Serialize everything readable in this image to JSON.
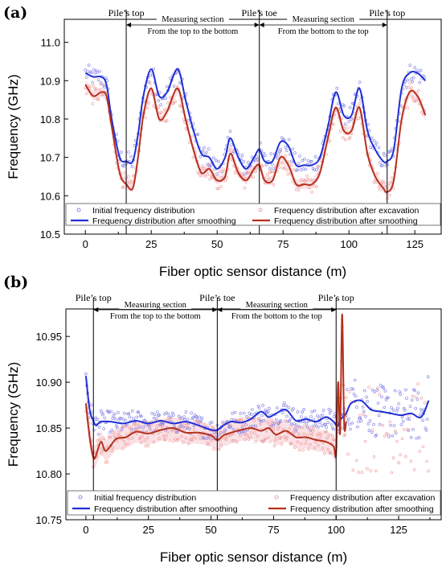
{
  "chart_data": [
    {
      "panel": "(a)",
      "type": "scatter",
      "xlabel": "Fiber optic sensor distance (m)",
      "ylabel": "Frequency (GHz)",
      "xlim": [
        -8,
        135
      ],
      "ylim": [
        10.5,
        11.06
      ],
      "xticks": [
        "0",
        "25",
        "50",
        "75",
        "100",
        "125"
      ],
      "xtick_values": [
        0,
        25,
        50,
        75,
        100,
        125
      ],
      "yticks": [
        "10.5",
        "10.6",
        "10.7",
        "10.8",
        "10.9",
        "11.0"
      ],
      "ytick_values": [
        10.5,
        10.6,
        10.7,
        10.8,
        10.9,
        11.0
      ],
      "markers": [
        {
          "x": 15.5,
          "label": "Pile’s top"
        },
        {
          "x": 66,
          "label": "Pile’s toe"
        },
        {
          "x": 114.5,
          "label": "Pile’s top"
        }
      ],
      "sections": [
        {
          "from": 15.5,
          "to": 66,
          "title": "Measuring section",
          "subtitle": "From the top to the bottom"
        },
        {
          "from": 66,
          "to": 114.5,
          "title": "Measuring section",
          "subtitle": "From the bottom to the top"
        }
      ],
      "legend": [
        {
          "label": "Initial frequency distribution",
          "style": "circle",
          "color": "#6b6bdc"
        },
        {
          "label": "Frequency distribution after excavation",
          "style": "circle",
          "color": "#e88a8a"
        },
        {
          "label": "Frequency distribution after smoothing",
          "style": "line",
          "color": "#1f2fd6"
        },
        {
          "label": "Frequency distribution after smoothing",
          "style": "line",
          "color": "#b5301c"
        }
      ],
      "series": [
        {
          "name": "Frequency distribution after smoothing",
          "color": "#1f2fd6",
          "x": [
            0,
            3,
            6,
            8,
            10,
            13,
            15.5,
            18,
            20,
            22,
            25,
            28,
            31,
            35,
            38,
            41,
            44,
            47,
            50,
            53,
            55,
            58,
            61,
            64,
            66,
            68,
            71,
            74,
            77,
            80,
            83,
            86,
            89,
            92,
            95,
            98,
            101,
            104,
            107,
            110,
            113,
            114.5,
            117,
            120,
            123,
            126,
            129
          ],
          "y": [
            10.92,
            10.91,
            10.91,
            10.89,
            10.8,
            10.7,
            10.69,
            10.69,
            10.76,
            10.86,
            10.93,
            10.86,
            10.87,
            10.93,
            10.85,
            10.77,
            10.71,
            10.7,
            10.67,
            10.7,
            10.75,
            10.7,
            10.67,
            10.7,
            10.72,
            10.69,
            10.69,
            10.74,
            10.73,
            10.68,
            10.68,
            10.68,
            10.7,
            10.78,
            10.87,
            10.81,
            10.81,
            10.88,
            10.77,
            10.72,
            10.69,
            10.69,
            10.72,
            10.88,
            10.92,
            10.92,
            10.9
          ]
        },
        {
          "name": "Frequency distribution after smoothing",
          "color": "#b5301c",
          "x": [
            0,
            3,
            6,
            8,
            10,
            13,
            15.5,
            18,
            20,
            22,
            25,
            28,
            31,
            35,
            38,
            41,
            44,
            47,
            50,
            53,
            55,
            58,
            61,
            64,
            66,
            68,
            71,
            74,
            77,
            80,
            83,
            86,
            89,
            92,
            95,
            98,
            101,
            104,
            107,
            110,
            113,
            114.5,
            117,
            120,
            123,
            126,
            129
          ],
          "y": [
            10.89,
            10.86,
            10.87,
            10.86,
            10.78,
            10.66,
            10.63,
            10.62,
            10.7,
            10.81,
            10.88,
            10.8,
            10.82,
            10.88,
            10.8,
            10.72,
            10.66,
            10.67,
            10.64,
            10.65,
            10.71,
            10.66,
            10.64,
            10.67,
            10.68,
            10.64,
            10.64,
            10.7,
            10.68,
            10.63,
            10.63,
            10.63,
            10.66,
            10.75,
            10.83,
            10.77,
            10.77,
            10.83,
            10.71,
            10.65,
            10.62,
            10.61,
            10.64,
            10.8,
            10.87,
            10.86,
            10.81
          ]
        }
      ]
    },
    {
      "panel": "(b)",
      "type": "scatter",
      "xlabel": "Fiber optic sensor distance (m)",
      "ylabel": "Frequency (GHz)",
      "xlim": [
        -8,
        142
      ],
      "ylim": [
        10.75,
        10.98
      ],
      "xticks": [
        "0",
        "25",
        "50",
        "75",
        "100",
        "125"
      ],
      "xtick_values": [
        0,
        25,
        50,
        75,
        100,
        125
      ],
      "yticks": [
        "10.75",
        "10.80",
        "10.85",
        "10.90",
        "10.95"
      ],
      "ytick_values": [
        10.75,
        10.8,
        10.85,
        10.9,
        10.95
      ],
      "markers": [
        {
          "x": 3,
          "label": "Pile’s top"
        },
        {
          "x": 52.5,
          "label": "Pile’s toe"
        },
        {
          "x": 100,
          "label": "Pile’s top"
        }
      ],
      "sections": [
        {
          "from": 3,
          "to": 52.5,
          "title": "Measuring section",
          "subtitle": "From the top to the bottom"
        },
        {
          "from": 52.5,
          "to": 100,
          "title": "Measuring section",
          "subtitle": "From the bottom to the top"
        }
      ],
      "legend": [
        {
          "label": "Initial frequency distribution",
          "style": "circle",
          "color": "#6b6bdc"
        },
        {
          "label": "Frequency distribution after excavation",
          "style": "circle",
          "color": "#e88a8a"
        },
        {
          "label": "Frequency distribution after smoothing",
          "style": "line",
          "color": "#1f2fd6"
        },
        {
          "label": "Frequency distribution after smoothing",
          "style": "line",
          "color": "#b5301c"
        }
      ],
      "series": [
        {
          "name": "Frequency distribution after smoothing",
          "color": "#1f2fd6",
          "x": [
            0,
            1.5,
            3,
            4,
            6,
            10,
            15,
            20,
            25,
            30,
            35,
            40,
            45,
            50,
            52.5,
            55,
            58,
            62,
            66,
            70,
            73,
            76,
            80,
            84,
            88,
            92,
            96,
            99,
            100.5,
            102,
            104,
            106,
            110,
            114,
            118,
            122,
            126,
            130,
            134,
            137
          ],
          "y": [
            10.907,
            10.87,
            10.858,
            10.853,
            10.857,
            10.857,
            10.855,
            10.858,
            10.855,
            10.858,
            10.855,
            10.857,
            10.853,
            10.848,
            10.848,
            10.853,
            10.857,
            10.856,
            10.86,
            10.868,
            10.862,
            10.866,
            10.87,
            10.858,
            10.86,
            10.857,
            10.862,
            10.857,
            10.852,
            10.86,
            10.866,
            10.877,
            10.88,
            10.87,
            10.868,
            10.866,
            10.864,
            10.866,
            10.862,
            10.88
          ]
        },
        {
          "name": "Frequency distribution after smoothing",
          "color": "#b5301c",
          "x": [
            0,
            1.5,
            3,
            4,
            6,
            8,
            12,
            16,
            20,
            25,
            30,
            35,
            40,
            45,
            50,
            52.5,
            55,
            58,
            62,
            66,
            70,
            73,
            76,
            80,
            84,
            88,
            92,
            96,
            99,
            100,
            100.8,
            101.6,
            102.4,
            103.2,
            104
          ],
          "y": [
            10.877,
            10.84,
            10.818,
            10.82,
            10.835,
            10.825,
            10.838,
            10.84,
            10.846,
            10.844,
            10.848,
            10.85,
            10.845,
            10.845,
            10.842,
            10.837,
            10.842,
            10.845,
            10.848,
            10.85,
            10.847,
            10.85,
            10.843,
            10.847,
            10.84,
            10.84,
            10.837,
            10.835,
            10.83,
            10.822,
            10.9,
            10.845,
            10.974,
            10.855,
            10.857
          ]
        }
      ]
    }
  ]
}
